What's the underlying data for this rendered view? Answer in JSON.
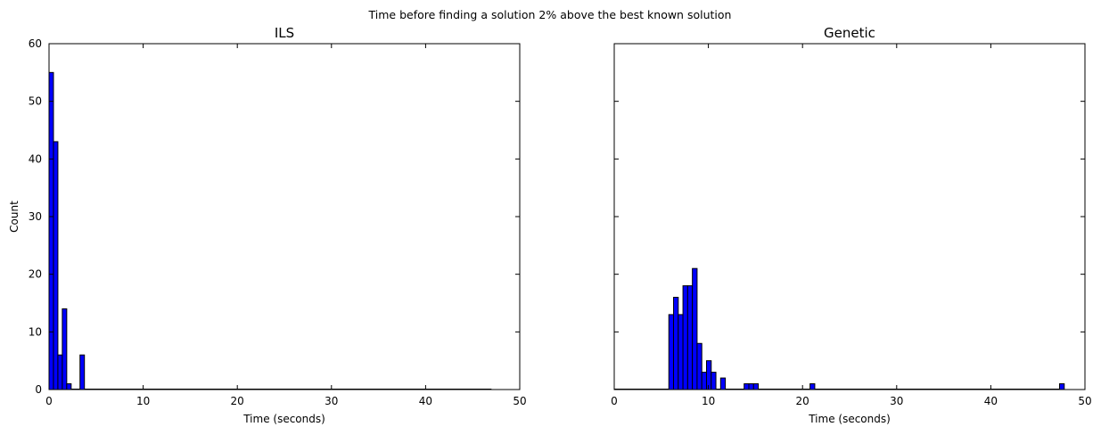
{
  "figure": {
    "suptitle": "Time before finding a solution 2% above the best known solution"
  },
  "chart_data": [
    {
      "type": "bar",
      "title": "ILS",
      "xlabel": "Time (seconds)",
      "ylabel": "Count",
      "xlim": [
        0,
        50
      ],
      "ylim": [
        0,
        60
      ],
      "xticks": [
        "0",
        "10",
        "20",
        "30",
        "40",
        "50"
      ],
      "yticks": [
        "0",
        "10",
        "20",
        "30",
        "40",
        "50",
        "60"
      ],
      "bin_width": 0.47,
      "bar_color": "#0000ff",
      "bins": [
        {
          "x": 0.0,
          "count": 55
        },
        {
          "x": 0.47,
          "count": 43
        },
        {
          "x": 0.94,
          "count": 6
        },
        {
          "x": 1.41,
          "count": 14
        },
        {
          "x": 1.88,
          "count": 1
        },
        {
          "x": 3.29,
          "count": 6
        }
      ],
      "baseline_end": 47.0,
      "grid": false
    },
    {
      "type": "bar",
      "title": "Genetic",
      "xlabel": "Time (seconds)",
      "ylabel": "",
      "xlim": [
        0,
        50
      ],
      "ylim": [
        0,
        60
      ],
      "xticks": [
        "0",
        "10",
        "20",
        "30",
        "40",
        "50"
      ],
      "yticks": [],
      "bin_width": 0.5,
      "bar_color": "#0000ff",
      "bins": [
        {
          "x": 5.8,
          "count": 13
        },
        {
          "x": 6.3,
          "count": 16
        },
        {
          "x": 6.8,
          "count": 13
        },
        {
          "x": 7.3,
          "count": 18
        },
        {
          "x": 7.8,
          "count": 18
        },
        {
          "x": 8.3,
          "count": 21
        },
        {
          "x": 8.8,
          "count": 8
        },
        {
          "x": 9.3,
          "count": 3
        },
        {
          "x": 9.8,
          "count": 5
        },
        {
          "x": 10.3,
          "count": 3
        },
        {
          "x": 11.3,
          "count": 2
        },
        {
          "x": 13.8,
          "count": 1
        },
        {
          "x": 14.3,
          "count": 1
        },
        {
          "x": 14.8,
          "count": 1
        },
        {
          "x": 20.8,
          "count": 1
        },
        {
          "x": 47.3,
          "count": 1
        }
      ],
      "baseline_start": 0.0,
      "baseline_end": 47.8,
      "grid": false
    }
  ]
}
